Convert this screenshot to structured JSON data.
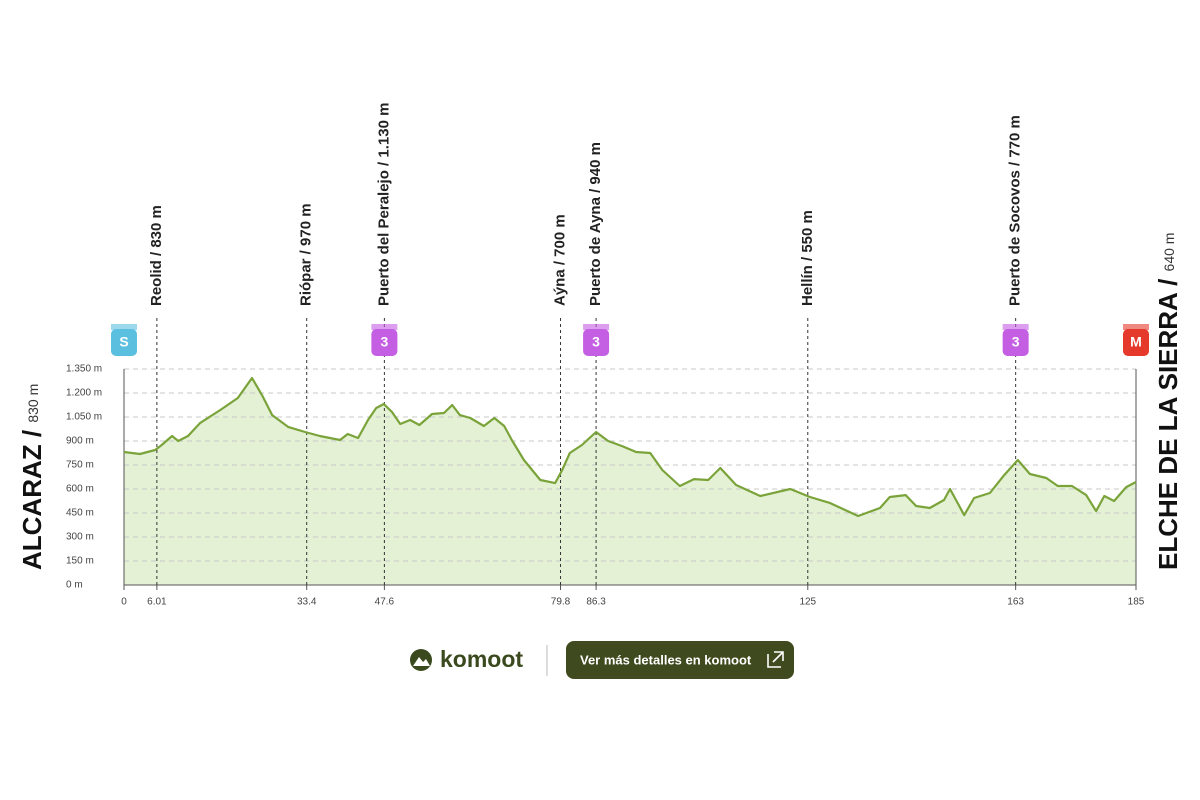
{
  "chart_data": {
    "type": "area",
    "x": [
      0,
      2.9,
      5.7,
      6.9,
      8.8,
      9.9,
      11.7,
      13.9,
      17.6,
      20.8,
      23.4,
      25.2,
      27.1,
      30,
      33.1,
      35.8,
      39.5,
      40.9,
      42.8,
      44.6,
      46.1,
      47.5,
      49,
      50.5,
      52.3,
      54,
      56.3,
      58.5,
      60,
      61.4,
      63.3,
      65.8,
      67.7,
      69.5,
      70.9,
      73.1,
      76.1,
      78.8,
      80.1,
      81.5,
      83.7,
      86.3,
      88.5,
      91,
      93.6,
      96.2,
      98.4,
      101.6,
      104.2,
      106.8,
      109,
      111.9,
      116.3,
      121.8,
      125.4,
      129.1,
      134.2,
      138.2,
      140,
      142.9,
      144.8,
      147.3,
      149.9,
      151,
      152.1,
      153.6,
      155.4,
      158.3,
      160.9,
      163.4,
      165.6,
      168.6,
      170.7,
      173.3,
      175.9,
      177.7,
      179.2,
      181,
      183.2,
      185
    ],
    "y": [
      831,
      819,
      844,
      875,
      931,
      900,
      931,
      1012,
      1094,
      1169,
      1294,
      1188,
      1062,
      988,
      956,
      931,
      906,
      944,
      919,
      1031,
      1106,
      1131,
      1081,
      1006,
      1031,
      1000,
      1069,
      1075,
      1125,
      1062,
      1044,
      994,
      1044,
      994,
      906,
      781,
      656,
      637,
      719,
      825,
      875,
      956,
      900,
      869,
      831,
      825,
      719,
      619,
      662,
      656,
      731,
      625,
      556,
      600,
      550,
      512,
      431,
      481,
      550,
      562,
      494,
      481,
      531,
      600,
      531,
      437,
      544,
      575,
      687,
      781,
      694,
      669,
      619,
      619,
      562,
      462,
      556,
      525,
      612,
      644
    ],
    "color": "#7aa33a",
    "fill": "#e4f1d5",
    "xlim": [
      0,
      185
    ],
    "ylim": [
      0,
      1350
    ],
    "xticks": [
      0,
      6.01,
      33.4,
      47.6,
      79.8,
      86.3,
      125,
      163,
      185
    ],
    "yticks": [
      {
        "value": 0,
        "label": "0 m"
      },
      {
        "value": 150,
        "label": "150 m"
      },
      {
        "value": 300,
        "label": "300 m"
      },
      {
        "value": 450,
        "label": "450 m"
      },
      {
        "value": 600,
        "label": "600 m"
      },
      {
        "value": 750,
        "label": "750 m"
      },
      {
        "value": 900,
        "label": "900 m"
      },
      {
        "value": 1050,
        "label": "1.050 m"
      },
      {
        "value": 1200,
        "label": "1.200 m"
      },
      {
        "value": 1350,
        "label": "1.350 m"
      }
    ],
    "grid": true,
    "waypoints": [
      {
        "x": 6.01,
        "label": "Reolid / 830 m"
      },
      {
        "x": 33.4,
        "label": "Riópar / 970 m"
      },
      {
        "x": 47.6,
        "label": "Puerto del Peralejo / 1.130 m"
      },
      {
        "x": 79.8,
        "label": "Aýna / 700 m"
      },
      {
        "x": 86.3,
        "label": "Puerto de Ayna / 940 m"
      },
      {
        "x": 125,
        "label": "Hellín / 550 m"
      },
      {
        "x": 163,
        "label": "Puerto de Socovos / 770 m"
      }
    ],
    "markers": [
      {
        "x": 0,
        "label": "S",
        "color": "#5bbfe0"
      },
      {
        "x": 47.6,
        "label": "3",
        "color": "#c45ee3"
      },
      {
        "x": 86.3,
        "label": "3",
        "color": "#c45ee3"
      },
      {
        "x": 163,
        "label": "3",
        "color": "#c45ee3"
      },
      {
        "x": 185,
        "label": "M",
        "color": "#e5392b"
      }
    ],
    "start": {
      "name": "ALCARAZ /",
      "elevation": "830 m"
    },
    "end": {
      "name": "ELCHE DE LA SIERRA /",
      "elevation": "640 m"
    }
  },
  "footer": {
    "brand": "komoot",
    "button": "Ver más detalles en komoot"
  }
}
